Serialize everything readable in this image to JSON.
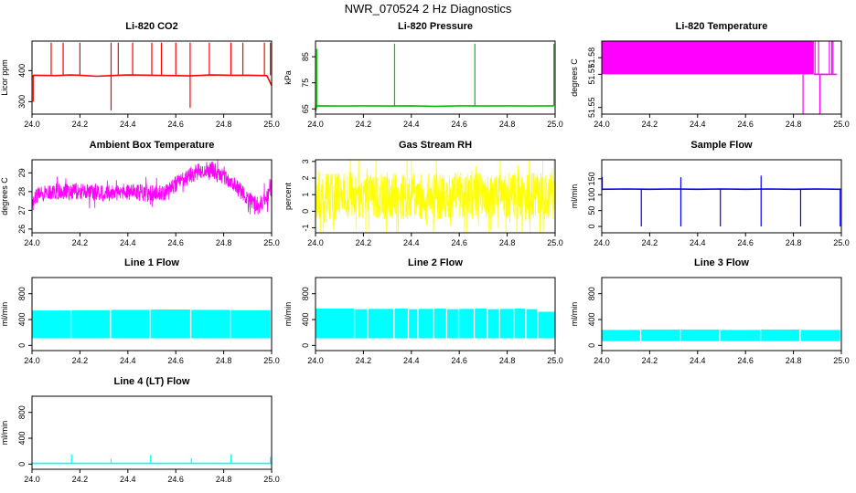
{
  "title": "NWR_070524  2 Hz Diagnostics",
  "chart_data": [
    {
      "id": "co2",
      "type": "line",
      "title": "Li-820 CO2",
      "ylabel": "Licor ppm",
      "color": "#ff0000",
      "xlim": [
        24.0,
        25.0
      ],
      "ylim": [
        260,
        495
      ],
      "xticks": [
        "24.0",
        "24.2",
        "24.4",
        "24.6",
        "24.8",
        "25.0"
      ],
      "yticks": [
        300,
        400
      ],
      "ytick_rot": true,
      "series": {
        "x": [
          24.0,
          24.008,
          24.1,
          24.16,
          24.2,
          24.27,
          24.33,
          24.4,
          24.5,
          24.6,
          24.66,
          24.75,
          24.83,
          24.9,
          24.98,
          25.0
        ],
        "values": [
          380,
          385,
          384,
          386,
          385,
          382,
          384,
          386,
          385,
          384,
          383,
          386,
          385,
          385,
          384,
          352
        ]
      },
      "spikes_up": {
        "x": [
          24.08,
          24.13,
          24.2,
          24.33,
          24.36,
          24.42,
          24.5,
          24.54,
          24.6,
          24.66,
          24.74,
          24.83,
          24.88,
          24.97,
          24.995
        ],
        "values": [
          490,
          490,
          490,
          490,
          490,
          490,
          490,
          490,
          490,
          490,
          490,
          490,
          490,
          490,
          490
        ]
      },
      "spikes_down": {
        "x": [
          24.005,
          24.33,
          24.66
        ],
        "values": [
          300,
          272,
          280
        ]
      }
    },
    {
      "id": "pressure",
      "type": "line",
      "title": "Li-820 Pressure",
      "ylabel": "kPa",
      "color": "#00c000",
      "xlim": [
        24.0,
        25.0
      ],
      "ylim": [
        63,
        91
      ],
      "xticks": [
        "24.0",
        "24.2",
        "24.4",
        "24.6",
        "24.8",
        "25.0"
      ],
      "yticks": [
        65,
        75,
        85
      ],
      "ytick_rot": true,
      "series": {
        "x": [
          24.0,
          24.005,
          24.1,
          24.2,
          24.3,
          24.4,
          24.5,
          24.6,
          24.7,
          24.8,
          24.9,
          24.995
        ],
        "values": [
          64,
          66.2,
          66.1,
          66.2,
          66.1,
          66.2,
          66.0,
          66.2,
          66.1,
          66.2,
          66.1,
          66.2
        ]
      },
      "spikes_up": {
        "x": [
          24.005,
          24.33,
          24.665,
          24.995
        ],
        "values": [
          88,
          90,
          90,
          90
        ]
      },
      "spikes_down": {
        "x": [],
        "values": []
      }
    },
    {
      "id": "temp",
      "type": "area",
      "title": "Li-820 Temperature",
      "ylabel": "degrees C",
      "color": "#ff00ff",
      "xlim": [
        24.0,
        25.0
      ],
      "ylim": [
        51.546,
        51.59
      ],
      "xticks": [
        "24.0",
        "24.2",
        "24.4",
        "24.6",
        "24.8",
        "25.0"
      ],
      "yticks": [
        51.55,
        51.57,
        51.58
      ],
      "ytick_rot": true,
      "band": {
        "x0": 24.0,
        "x1": 24.885,
        "lo": 51.57,
        "hi": 51.59
      },
      "spikes_up": {
        "x": [
          24.89,
          24.905,
          24.95,
          24.96,
          24.965
        ],
        "values": [
          51.59,
          51.59,
          51.59,
          51.59,
          51.59
        ]
      },
      "spikes_down": {
        "x": [
          24.84,
          24.91
        ],
        "values": [
          51.546,
          51.546
        ]
      },
      "series": {
        "x": [
          24.885,
          24.9,
          24.95,
          24.98
        ],
        "values": [
          51.57,
          51.57,
          51.57,
          51.57
        ]
      }
    },
    {
      "id": "ambient",
      "type": "line",
      "title": "Ambient Box Temperature",
      "ylabel": "degrees C",
      "color": "#ff00ff",
      "xlim": [
        24.0,
        25.0
      ],
      "ylim": [
        25.8,
        29.7
      ],
      "xticks": [
        "24.0",
        "24.2",
        "24.4",
        "24.6",
        "24.8",
        "25.0"
      ],
      "yticks": [
        26,
        27,
        28,
        29
      ],
      "ytick_rot": true,
      "series": {
        "x": [
          24.0,
          24.05,
          24.1,
          24.2,
          24.3,
          24.4,
          24.5,
          24.55,
          24.6,
          24.65,
          24.7,
          24.75,
          24.8,
          24.85,
          24.9,
          24.95,
          25.0
        ],
        "values": [
          27.6,
          27.9,
          28.0,
          28.0,
          27.9,
          28.0,
          27.9,
          27.9,
          28.4,
          28.8,
          29.1,
          29.2,
          28.8,
          28.3,
          27.6,
          27.3,
          28.0
        ]
      },
      "noise": 0.55
    },
    {
      "id": "rh",
      "type": "line",
      "title": "Gas Stream RH",
      "ylabel": "percent",
      "color": "#ffff00",
      "xlim": [
        24.0,
        25.0
      ],
      "ylim": [
        -1.3,
        3.1
      ],
      "xticks": [
        "24.0",
        "24.2",
        "24.4",
        "24.6",
        "24.8",
        "25.0"
      ],
      "yticks": [
        -1,
        0,
        1,
        2,
        3
      ],
      "ytick_rot": true,
      "series": {
        "x": [
          24.0,
          25.0
        ],
        "values": [
          0.9,
          0.9
        ]
      },
      "noise": 1.8
    },
    {
      "id": "sampleflow",
      "type": "line",
      "title": "Sample Flow",
      "ylabel": "ml/min",
      "color": "#0000ff",
      "xlim": [
        24.0,
        25.0
      ],
      "ylim": [
        -20,
        210
      ],
      "xticks": [
        "24.0",
        "24.2",
        "24.4",
        "24.6",
        "24.8",
        "25.0"
      ],
      "yticks": [
        0,
        50,
        100,
        150
      ],
      "ytick_rot": true,
      "series": {
        "x": [
          24.0,
          24.1,
          24.2,
          24.3,
          24.4,
          24.5,
          24.6,
          24.7,
          24.8,
          24.9,
          25.0
        ],
        "values": [
          117,
          118,
          117,
          118,
          117,
          118,
          117,
          118,
          117,
          118,
          117
        ]
      },
      "spikes_up": {
        "x": [
          24.002,
          24.33,
          24.665
        ],
        "values": [
          155,
          155,
          160
        ]
      },
      "spikes_down": {
        "x": [
          24.165,
          24.33,
          24.495,
          24.665,
          24.83,
          24.995
        ],
        "values": [
          0,
          0,
          0,
          0,
          0,
          0
        ]
      }
    },
    {
      "id": "line1",
      "type": "area",
      "title": "Line 1 Flow",
      "ylabel": "ml/min",
      "color": "#00ffff",
      "xlim": [
        24.0,
        25.0
      ],
      "ylim": [
        -80,
        1050
      ],
      "xticks": [
        "24.0",
        "24.2",
        "24.4",
        "24.6",
        "24.8",
        "25.0"
      ],
      "yticks": [
        0,
        400,
        800
      ],
      "ytick_rot": true,
      "blocks": {
        "x0": [
          24.0,
          24.165,
          24.33,
          24.495,
          24.665,
          24.83
        ],
        "x1": [
          24.16,
          24.325,
          24.49,
          24.66,
          24.825,
          24.995
        ],
        "lo": [
          110,
          110,
          110,
          110,
          110,
          110
        ],
        "hi": [
          540,
          545,
          550,
          555,
          550,
          545
        ]
      }
    },
    {
      "id": "line2",
      "type": "area",
      "title": "Line 2 Flow",
      "ylabel": "ml/min",
      "color": "#00ffff",
      "xlim": [
        24.0,
        25.0
      ],
      "ylim": [
        -80,
        1050
      ],
      "xticks": [
        "24.0",
        "24.2",
        "24.4",
        "24.6",
        "24.8",
        "25.0"
      ],
      "yticks": [
        0,
        400,
        800
      ],
      "ytick_rot": true,
      "blocks": {
        "x0": [
          24.0,
          24.165,
          24.22,
          24.33,
          24.39,
          24.43,
          24.495,
          24.55,
          24.6,
          24.665,
          24.72,
          24.77,
          24.83,
          24.88,
          24.93
        ],
        "x1": [
          24.16,
          24.215,
          24.325,
          24.385,
          24.425,
          24.49,
          24.545,
          24.595,
          24.66,
          24.715,
          24.765,
          24.825,
          24.875,
          24.925,
          25.0
        ],
        "lo": [
          110,
          110,
          110,
          110,
          110,
          110,
          110,
          110,
          110,
          110,
          110,
          110,
          110,
          110,
          110
        ],
        "hi": [
          570,
          560,
          565,
          570,
          560,
          565,
          570,
          560,
          565,
          570,
          560,
          565,
          570,
          560,
          520
        ]
      }
    },
    {
      "id": "line3",
      "type": "area",
      "title": "Line 3 Flow",
      "ylabel": "ml/min",
      "color": "#00ffff",
      "xlim": [
        24.0,
        25.0
      ],
      "ylim": [
        -80,
        1050
      ],
      "xticks": [
        "24.0",
        "24.2",
        "24.4",
        "24.6",
        "24.8",
        "25.0"
      ],
      "yticks": [
        0,
        400,
        800
      ],
      "ytick_rot": true,
      "blocks": {
        "x0": [
          24.0,
          24.165,
          24.33,
          24.495,
          24.665,
          24.83
        ],
        "x1": [
          24.16,
          24.325,
          24.49,
          24.66,
          24.825,
          24.995
        ],
        "lo": [
          65,
          65,
          65,
          65,
          65,
          65
        ],
        "hi": [
          240,
          245,
          245,
          240,
          245,
          240
        ]
      }
    },
    {
      "id": "line4",
      "type": "line",
      "title": "Line 4 (LT) Flow",
      "ylabel": "ml/min",
      "color": "#00ffff",
      "xlim": [
        24.0,
        25.0
      ],
      "ylim": [
        -80,
        1050
      ],
      "xticks": [
        "24.0",
        "24.2",
        "24.4",
        "24.6",
        "24.8",
        "25.0"
      ],
      "yticks": [
        0,
        400,
        800
      ],
      "ytick_rot": true,
      "series": {
        "x": [
          24.0,
          25.0
        ],
        "values": [
          10,
          10
        ]
      },
      "spikes_up": {
        "x": [
          24.165,
          24.33,
          24.495,
          24.665,
          24.83,
          24.995
        ],
        "values": [
          150,
          80,
          140,
          90,
          150,
          110
        ]
      },
      "spikes_down": {
        "x": [],
        "values": []
      }
    }
  ]
}
